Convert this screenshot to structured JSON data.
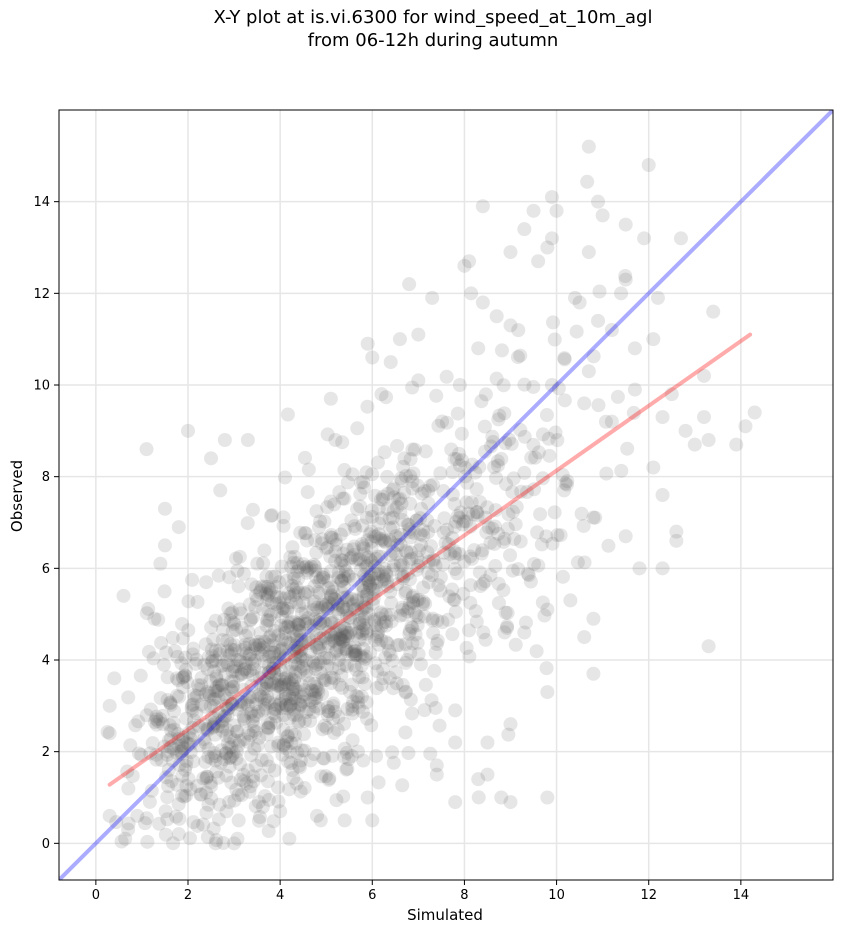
{
  "chart_data": {
    "type": "scatter",
    "title_line1": "X-Y plot at is.vi.6300 for wind_speed_at_10m_agl",
    "title_line2": "from 06-12h during autumn",
    "xlabel": "Simulated",
    "ylabel": "Observed",
    "xlim": [
      -0.8,
      16.0
    ],
    "ylim": [
      -0.8,
      16.0
    ],
    "xticks": [
      0,
      2,
      4,
      6,
      8,
      10,
      12,
      14
    ],
    "yticks": [
      0,
      2,
      4,
      6,
      8,
      10,
      12,
      14
    ],
    "grid": true,
    "point_color": "#555555",
    "identity_line": {
      "color": "#0000ff",
      "x": [
        -0.8,
        16.0
      ],
      "y": [
        -0.8,
        16.0
      ]
    },
    "fit_line": {
      "color": "#ff0000",
      "x": [
        0.3,
        14.2
      ],
      "y": [
        1.28,
        11.1
      ]
    },
    "points_note": "approx. 1500 observations; outliers listed explicitly",
    "outliers": [
      [
        10.7,
        15.2
      ],
      [
        12.0,
        14.8
      ],
      [
        9.9,
        14.1
      ],
      [
        10.0,
        13.8
      ],
      [
        8.4,
        13.9
      ],
      [
        9.5,
        13.8
      ],
      [
        10.9,
        14.0
      ],
      [
        11.0,
        13.7
      ],
      [
        11.5,
        13.5
      ],
      [
        12.7,
        13.2
      ],
      [
        9.9,
        13.2
      ],
      [
        9.8,
        13.0
      ],
      [
        11.9,
        13.2
      ],
      [
        9.3,
        13.4
      ],
      [
        9.0,
        12.9
      ],
      [
        8.1,
        12.7
      ],
      [
        8.0,
        12.6
      ],
      [
        9.6,
        12.7
      ],
      [
        10.7,
        12.9
      ],
      [
        6.8,
        12.2
      ],
      [
        7.3,
        11.9
      ],
      [
        11.5,
        12.3
      ],
      [
        11.4,
        12.0
      ],
      [
        12.2,
        11.9
      ],
      [
        10.4,
        11.9
      ],
      [
        10.5,
        11.8
      ],
      [
        8.4,
        11.8
      ],
      [
        8.7,
        11.5
      ],
      [
        9.0,
        11.3
      ],
      [
        11.2,
        11.2
      ],
      [
        10.9,
        11.4
      ],
      [
        5.9,
        10.9
      ],
      [
        7.0,
        11.1
      ],
      [
        12.1,
        11.0
      ],
      [
        13.4,
        11.6
      ],
      [
        10.7,
        10.3
      ],
      [
        11.7,
        10.8
      ],
      [
        13.2,
        10.2
      ],
      [
        14.3,
        9.4
      ],
      [
        14.1,
        9.1
      ],
      [
        13.9,
        8.7
      ],
      [
        13.2,
        9.3
      ],
      [
        13.3,
        8.8
      ],
      [
        12.8,
        9.0
      ],
      [
        13.0,
        8.7
      ],
      [
        12.3,
        9.3
      ],
      [
        12.1,
        8.2
      ],
      [
        12.3,
        7.6
      ],
      [
        12.6,
        6.8
      ],
      [
        12.6,
        6.6
      ],
      [
        12.3,
        6.0
      ],
      [
        11.8,
        6.0
      ],
      [
        11.5,
        6.7
      ],
      [
        13.3,
        4.3
      ],
      [
        10.8,
        4.9
      ],
      [
        10.8,
        3.7
      ],
      [
        10.6,
        4.5
      ],
      [
        9.8,
        3.3
      ],
      [
        9.8,
        1.0
      ],
      [
        9.0,
        0.9
      ],
      [
        8.8,
        1.0
      ],
      [
        9.0,
        2.6
      ],
      [
        8.5,
        2.2
      ],
      [
        8.5,
        1.5
      ],
      [
        8.3,
        1.4
      ],
      [
        7.8,
        0.9
      ],
      [
        7.8,
        2.2
      ],
      [
        7.8,
        2.9
      ],
      [
        9.3,
        4.6
      ],
      [
        9.8,
        5.1
      ],
      [
        10.3,
        5.3
      ],
      [
        1.1,
        8.6
      ],
      [
        2.0,
        9.0
      ],
      [
        2.5,
        8.4
      ],
      [
        2.7,
        7.7
      ],
      [
        3.3,
        8.8
      ],
      [
        2.8,
        8.8
      ],
      [
        1.8,
        6.9
      ],
      [
        1.5,
        7.3
      ],
      [
        0.6,
        5.4
      ],
      [
        1.5,
        6.5
      ],
      [
        1.4,
        6.1
      ],
      [
        0.3,
        3.0
      ],
      [
        0.3,
        2.4
      ],
      [
        0.4,
        3.6
      ],
      [
        0.3,
        0.6
      ],
      [
        0.7,
        0.3
      ],
      [
        0.9,
        0.6
      ],
      [
        1.8,
        0.2
      ],
      [
        2.6,
        0.0
      ],
      [
        3.0,
        0.0
      ],
      [
        3.1,
        0.5
      ],
      [
        4.2,
        0.1
      ],
      [
        4.0,
        0.7
      ],
      [
        4.8,
        0.6
      ],
      [
        5.4,
        0.5
      ],
      [
        6.0,
        0.5
      ],
      [
        5.9,
        1.0
      ],
      [
        7.4,
        1.5
      ],
      [
        7.4,
        1.7
      ],
      [
        5.2,
        8.8
      ],
      [
        5.1,
        9.7
      ],
      [
        6.2,
        9.8
      ],
      [
        6.0,
        10.6
      ],
      [
        6.4,
        10.5
      ],
      [
        6.6,
        11.0
      ],
      [
        7.0,
        10.1
      ],
      [
        7.9,
        10.0
      ],
      [
        8.3,
        10.8
      ],
      [
        9.9,
        10.0
      ],
      [
        10.6,
        9.6
      ],
      [
        11.2,
        9.2
      ],
      [
        11.7,
        9.9
      ],
      [
        12.5,
        9.8
      ]
    ],
    "cluster_density": [
      {
        "cx": 4.2,
        "cy": 4.0,
        "sx": 1.45,
        "sy": 1.45,
        "n": 900
      },
      {
        "cx": 6.2,
        "cy": 5.6,
        "sx": 1.6,
        "sy": 1.55,
        "n": 380
      },
      {
        "cx": 8.8,
        "cy": 7.0,
        "sx": 1.4,
        "sy": 1.8,
        "n": 150
      },
      {
        "cx": 2.0,
        "cy": 2.5,
        "sx": 0.9,
        "sy": 1.2,
        "n": 120
      }
    ]
  }
}
